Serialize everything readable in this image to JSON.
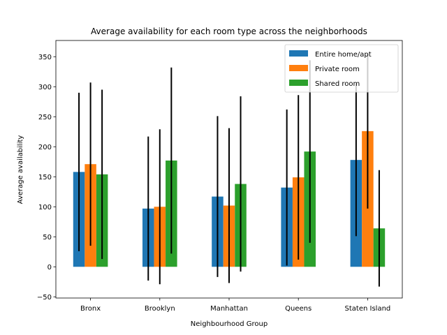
{
  "chart_data": {
    "type": "bar",
    "title": "Average availability for each room type across the neighborhoods",
    "xlabel": "Neighbourhood Group",
    "ylabel": "Average availability",
    "ylim": [
      -52,
      377
    ],
    "yticks": [
      -50,
      0,
      50,
      100,
      150,
      200,
      250,
      300,
      350
    ],
    "categories": [
      "Bronx",
      "Brooklyn",
      "Manhattan",
      "Queens",
      "Staten Island"
    ],
    "series": [
      {
        "name": "Entire home/apt",
        "color": "#1f77b4",
        "values": [
          158,
          97,
          117,
          132,
          178
        ],
        "errors": [
          132,
          120,
          134,
          130,
          127
        ]
      },
      {
        "name": "Private room",
        "color": "#ff7f0e",
        "values": [
          171,
          100,
          102,
          149,
          226
        ],
        "errors": [
          136,
          129,
          129,
          137,
          129
        ]
      },
      {
        "name": "Shared room",
        "color": "#2ca02c",
        "values": [
          154,
          177,
          138,
          192,
          64
        ],
        "errors": [
          141,
          155,
          146,
          152,
          97
        ]
      }
    ],
    "legend_position": "upper right",
    "grid": false
  }
}
